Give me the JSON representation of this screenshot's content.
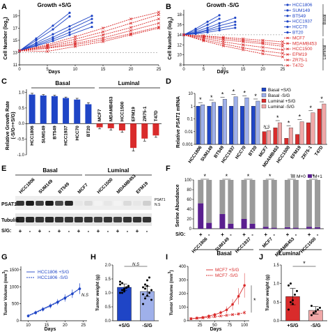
{
  "colors": {
    "basal": "#1f45c6",
    "basal_light": "#9fb0ea",
    "luminal": "#d92b2b",
    "luminal_light": "#f0a7a7",
    "gray": "#9a9a9a",
    "purple": "#5a1f8f"
  },
  "panelA": {
    "letter": "A",
    "title": "Growth +S/G",
    "xlabel": "Days",
    "ylabel": "Cell Number (log",
    "ylabel_sub": "2",
    "ylabel_end": ")",
    "chart_data": {
      "type": "line",
      "x_ticks": [
        0,
        5,
        10,
        15,
        20,
        25
      ],
      "y_ticks": [
        11,
        13,
        15,
        17,
        19
      ],
      "xlim": [
        0,
        25
      ],
      "ylim": [
        11,
        20
      ],
      "series": [
        {
          "name": "HCC1806",
          "group": "basal",
          "x": [
            0,
            3,
            6,
            9
          ],
          "y": [
            13.3,
            15.3,
            17.4,
            19.5
          ]
        },
        {
          "name": "SUM149",
          "group": "basal",
          "x": [
            0,
            3,
            6,
            9
          ],
          "y": [
            13.3,
            15.0,
            16.8,
            18.9
          ]
        },
        {
          "name": "BT549",
          "group": "basal",
          "x": [
            0,
            3,
            6,
            9,
            13
          ],
          "y": [
            13.3,
            14.6,
            16.0,
            17.3,
            19.0
          ]
        },
        {
          "name": "HCC1937",
          "group": "basal",
          "x": [
            0,
            3,
            6,
            9,
            13
          ],
          "y": [
            13.3,
            14.4,
            15.5,
            16.8,
            18.5
          ]
        },
        {
          "name": "HCC70",
          "group": "basal",
          "x": [
            0,
            3,
            6,
            9,
            13
          ],
          "y": [
            13.3,
            14.2,
            15.2,
            16.3,
            17.9
          ]
        },
        {
          "name": "BT20",
          "group": "basal",
          "x": [
            0,
            3,
            6,
            9,
            13
          ],
          "y": [
            13.3,
            14.1,
            14.9,
            15.9,
            17.2
          ]
        },
        {
          "name": "MCF7",
          "group": "luminal",
          "x": [
            0,
            5,
            10,
            15,
            20,
            25
          ],
          "y": [
            13.3,
            14.3,
            15.6,
            17.0,
            18.5,
            19.6
          ]
        },
        {
          "name": "MDAMB453",
          "group": "luminal",
          "x": [
            0,
            5,
            10,
            15,
            20,
            25
          ],
          "y": [
            13.3,
            14.1,
            15.2,
            16.4,
            17.8,
            19.2
          ]
        },
        {
          "name": "HCC1500",
          "group": "luminal",
          "x": [
            0,
            5,
            10,
            15,
            20,
            25
          ],
          "y": [
            13.3,
            14.0,
            14.8,
            15.9,
            17.1,
            18.5
          ]
        },
        {
          "name": "EFM19",
          "group": "luminal",
          "x": [
            0,
            5,
            10,
            15,
            20,
            25
          ],
          "y": [
            13.3,
            13.8,
            14.5,
            15.4,
            16.6,
            17.8
          ]
        },
        {
          "name": "ZR75-1",
          "group": "luminal",
          "x": [
            0,
            5,
            10,
            15,
            20,
            25
          ],
          "y": [
            13.3,
            13.7,
            14.3,
            15.1,
            16.1,
            17.2
          ]
        },
        {
          "name": "T47D",
          "group": "luminal",
          "x": [
            0,
            5,
            10,
            15,
            20,
            25
          ],
          "y": [
            13.3,
            13.2,
            14.0,
            14.8,
            15.9,
            17.0
          ]
        }
      ]
    }
  },
  "panelB": {
    "letter": "B",
    "title": "Growth -S/G",
    "xlabel": "Days",
    "ylabel": "Cell Number (log",
    "ylabel_sub": "2",
    "ylabel_end": ")",
    "basal_label": "Basal",
    "luminal_label": "Luminal",
    "legend": [
      "HCC1806",
      "SUM149",
      "BT549",
      "HCC1937",
      "HCC70",
      "BT20",
      "MCF7",
      "MDAMB453",
      "HCC1500",
      "EFM19",
      "ZR75-1",
      "T47D"
    ],
    "chart_data": {
      "type": "line",
      "x_ticks": [
        0,
        5,
        10,
        15,
        20,
        25
      ],
      "y_ticks": [
        8,
        10,
        12,
        14,
        16,
        18
      ],
      "xlim": [
        0,
        25
      ],
      "ylim": [
        8,
        19
      ],
      "series": [
        {
          "name": "HCC1806",
          "group": "basal",
          "x": [
            0,
            3,
            6,
            9
          ],
          "y": [
            14.0,
            15.2,
            16.6,
            17.9
          ]
        },
        {
          "name": "SUM149",
          "group": "basal",
          "x": [
            0,
            3,
            6,
            9
          ],
          "y": [
            14.0,
            14.9,
            16.0,
            17.2
          ]
        },
        {
          "name": "BT549",
          "group": "basal",
          "x": [
            0,
            3,
            6,
            9,
            13
          ],
          "y": [
            14.0,
            14.6,
            15.4,
            16.3,
            17.4
          ]
        },
        {
          "name": "HCC1937",
          "group": "basal",
          "x": [
            0,
            3,
            6,
            9,
            13
          ],
          "y": [
            14.0,
            14.4,
            15.0,
            15.8,
            16.6
          ]
        },
        {
          "name": "HCC70",
          "group": "basal",
          "x": [
            0,
            3,
            6,
            9,
            13
          ],
          "y": [
            14.0,
            14.3,
            14.8,
            15.3,
            16.0
          ]
        },
        {
          "name": "BT20",
          "group": "basal",
          "x": [
            0,
            3,
            6,
            9,
            13
          ],
          "y": [
            14.0,
            14.2,
            14.5,
            14.9,
            15.4
          ]
        },
        {
          "name": "MCF7",
          "group": "luminal",
          "x": [
            0,
            5,
            10,
            15,
            20,
            25
          ],
          "y": [
            14.0,
            13.8,
            13.5,
            13.2,
            12.9,
            12.6
          ]
        },
        {
          "name": "MDAMB453",
          "group": "luminal",
          "x": [
            0,
            5,
            10,
            15,
            20,
            25
          ],
          "y": [
            14.0,
            13.7,
            13.3,
            12.9,
            12.5,
            12.1
          ]
        },
        {
          "name": "HCC1500",
          "group": "luminal",
          "x": [
            0,
            5,
            10,
            15,
            20,
            25
          ],
          "y": [
            14.0,
            13.5,
            13.0,
            12.6,
            12.2,
            11.7
          ]
        },
        {
          "name": "EFM19",
          "group": "luminal",
          "x": [
            0,
            5,
            10,
            15,
            20,
            25
          ],
          "y": [
            14.0,
            13.3,
            12.6,
            12.0,
            11.5,
            11.0
          ]
        },
        {
          "name": "ZR75-1",
          "group": "luminal",
          "x": [
            0,
            5,
            10,
            15,
            20,
            25
          ],
          "y": [
            14.0,
            13.0,
            12.2,
            11.4,
            10.8,
            10.3
          ]
        },
        {
          "name": "T47D",
          "group": "luminal",
          "x": [
            0,
            5,
            10,
            15,
            20,
            25
          ],
          "y": [
            14.0,
            12.8,
            11.8,
            11.0,
            10.2,
            9.6
          ]
        }
      ]
    }
  },
  "panelC": {
    "letter": "C",
    "ylabel": "Relative Growth Rate",
    "ylabel2": "(-S/G÷+S/G)",
    "basal_label": "Basal",
    "luminal_label": "Luminal",
    "chart_data": {
      "type": "bar",
      "categories": [
        "HCC1806",
        "SUM149",
        "BT549",
        "HCC1937",
        "HCC70",
        "BT20",
        "MCF7",
        "MDAMB453",
        "HCC1500",
        "EFM19",
        "ZR75-1",
        "T47D"
      ],
      "values": [
        0.93,
        0.9,
        0.88,
        0.82,
        0.77,
        0.62,
        -0.12,
        -0.15,
        -0.22,
        -0.78,
        -0.48,
        -0.38
      ],
      "errors": [
        0.04,
        0.03,
        0.03,
        0.03,
        0.04,
        0.05,
        0.05,
        0.06,
        0.06,
        0.1,
        0.08,
        0.06
      ],
      "groups": [
        "basal",
        "basal",
        "basal",
        "basal",
        "basal",
        "basal",
        "luminal",
        "luminal",
        "luminal",
        "luminal",
        "luminal",
        "luminal"
      ],
      "y_ticks": [
        -1.0,
        -0.5,
        0.0,
        0.5,
        1.0
      ],
      "y_tick_labels": [
        "-1.0",
        "-0.5",
        "0.0",
        "0.5",
        "1.0"
      ],
      "ylim": [
        -1.0,
        1.1
      ]
    }
  },
  "panelD": {
    "letter": "D",
    "ylabel": "Relative ",
    "ylabel_italic": "PSAT1",
    "ylabel_end": " mRNA",
    "legend": [
      "Basal +S/G",
      "Basal -S/G",
      "Luminal +S/G",
      "Luminal -S/G"
    ],
    "ns_label": "N.S",
    "star": "*",
    "chart_data": {
      "type": "bar",
      "log_scale": true,
      "categories": [
        "HCC1806",
        "SUM149",
        "BT549",
        "HCC1937",
        "HCC70",
        "BT20",
        "MCF7",
        "MDAMB453",
        "HCC1500",
        "EFM19",
        "ZR75-1",
        "T47D"
      ],
      "series": [
        {
          "name": "+S/G",
          "values": [
            1.0,
            1.0,
            1.0,
            1.0,
            1.0,
            1.0,
            0.01,
            0.02,
            0.003,
            0.006,
            0.05,
            0.6
          ]
        },
        {
          "name": "-S/G",
          "values": [
            1.3,
            2.0,
            3.5,
            5.5,
            4.5,
            2.5,
            0.012,
            0.05,
            0.02,
            0.06,
            0.3,
            1.5
          ]
        }
      ],
      "significance": [
        "*",
        "*",
        "*",
        "*",
        "*",
        "*",
        "N.S",
        "*",
        "*",
        "*",
        "*",
        "*"
      ],
      "y_ticks": [
        0.001,
        0.01,
        0.1,
        1,
        10
      ],
      "y_tick_labels": [
        "0.001",
        "0.01",
        "0.1",
        "1",
        "10"
      ],
      "ylim": [
        0.001,
        10
      ]
    }
  },
  "panelE": {
    "letter": "E",
    "basal_label": "Basal",
    "luminal_label": "Luminal",
    "lanes": [
      "HCC1806",
      "SUM149",
      "BT549",
      "MCF7",
      "HCC1500",
      "MDAMB453",
      "EFM19"
    ],
    "psat1_label": "PSAT1",
    "psat1_ns_label": "PSAT1\nN.S",
    "tubulin_label": "Tubulin",
    "sg_label": "S/G:",
    "sg_signs": [
      "+",
      "-",
      "+",
      "-",
      "+",
      "-",
      "+",
      "-",
      "+",
      "-",
      "+",
      "-",
      "+",
      "-"
    ],
    "psat1_intensity": [
      0.85,
      0.95,
      0.8,
      0.95,
      0.75,
      0.9,
      0.1,
      0.15,
      0.05,
      0.1,
      0.05,
      0.15,
      0.1,
      0.2
    ],
    "tubulin_intensity": [
      0.9,
      0.9,
      0.85,
      0.9,
      0.85,
      0.85,
      0.85,
      0.85,
      0.8,
      0.85,
      0.8,
      0.85,
      0.85,
      0.85
    ]
  },
  "panelF": {
    "letter": "F",
    "ylabel": "Serine Abundance",
    "legend": [
      "M+0",
      "M+1"
    ],
    "sg_label": "S/G:",
    "basal_label": "Basal",
    "luminal_label": "Luminal",
    "star": "*",
    "chart_data": {
      "type": "bar",
      "stacked": true,
      "categories": [
        "HCC1806",
        "SUM149",
        "HCC1937",
        "MCF7",
        "MDAMB453",
        "HCC1500"
      ],
      "conditions": [
        "+",
        "-"
      ],
      "series": [
        {
          "name": "M+0",
          "values": [
            [
              0.48,
              0.88
            ],
            [
              0.7,
              0.9
            ],
            [
              0.8,
              0.9
            ],
            [
              0.96,
              0.98
            ],
            [
              0.97,
              0.98
            ],
            [
              0.96,
              0.97
            ]
          ]
        },
        {
          "name": "M+1",
          "values": [
            [
              0.52,
              0.12
            ],
            [
              0.3,
              0.1
            ],
            [
              0.2,
              0.1
            ],
            [
              0.04,
              0.02
            ],
            [
              0.03,
              0.02
            ],
            [
              0.04,
              0.03
            ]
          ]
        }
      ],
      "y_ticks": [
        0,
        20,
        40,
        60,
        80,
        100
      ],
      "ylim": [
        0,
        100
      ]
    }
  },
  "panelG": {
    "letter": "G",
    "xlabel": "Days",
    "ylabel": "Tumor Volume (mm",
    "ylabel_sup": "3",
    "ylabel_end": ")",
    "ns_label": "N.S",
    "chart_data": {
      "type": "line",
      "x_ticks": [
        10,
        15,
        20,
        25
      ],
      "y_ticks": [
        0,
        500,
        1000,
        1500
      ],
      "xlim": [
        8,
        26
      ],
      "ylim": [
        0,
        1600
      ],
      "series": [
        {
          "name": "HCC1806 +S/G",
          "x": [
            10,
            12,
            14,
            16,
            18,
            20,
            22,
            24
          ],
          "y": [
            150,
            250,
            350,
            450,
            560,
            680,
            800,
            950
          ],
          "err": [
            40,
            50,
            60,
            70,
            80,
            100,
            120,
            150
          ]
        },
        {
          "name": "HCC1806 -S/G",
          "x": [
            10,
            12,
            14,
            16,
            18,
            20,
            22,
            24
          ],
          "y": [
            140,
            230,
            330,
            430,
            540,
            660,
            790,
            940
          ],
          "err": [
            40,
            50,
            60,
            70,
            80,
            100,
            120,
            160
          ]
        }
      ]
    }
  },
  "panelH": {
    "letter": "H",
    "ylabel": "Tumor weight (g)",
    "ns_label": "N.S",
    "chart_data": {
      "type": "bar",
      "categories": [
        "+S/G",
        "-S/G"
      ],
      "values": [
        1.2,
        1.05
      ],
      "errors": [
        0.12,
        0.18
      ],
      "points": [
        [
          1.0,
          1.1,
          1.15,
          1.2,
          1.25,
          1.3,
          1.35,
          1.05,
          1.18,
          1.22,
          1.4,
          1.0,
          1.12
        ],
        [
          0.6,
          0.8,
          0.9,
          1.0,
          1.1,
          1.2,
          1.3,
          1.45,
          1.55,
          0.75,
          0.95,
          1.15,
          1.25
        ]
      ],
      "y_ticks": [
        0.0,
        0.5,
        1.0,
        1.5,
        2.0
      ],
      "y_tick_labels": [
        "0.0",
        "0.5",
        "1.0",
        "1.5",
        "2.0"
      ],
      "ylim": [
        0,
        2.0
      ]
    }
  },
  "panelI": {
    "letter": "I",
    "xlabel": "Days",
    "ylabel": "Tumor Volume (mm",
    "ylabel_sup": "3",
    "ylabel_end": ")",
    "star": "*",
    "chart_data": {
      "type": "line",
      "x_ticks": [
        25,
        50,
        75,
        100
      ],
      "y_ticks": [
        0,
        100,
        200,
        300,
        400
      ],
      "xlim": [
        5,
        108
      ],
      "ylim": [
        0,
        400
      ],
      "series": [
        {
          "name": "MCF7 +S/G",
          "x": [
            10,
            20,
            30,
            40,
            50,
            60,
            70,
            80,
            90,
            100
          ],
          "y": [
            15,
            20,
            25,
            35,
            45,
            60,
            80,
            120,
            180,
            260
          ],
          "err": [
            5,
            5,
            8,
            10,
            12,
            15,
            25,
            40,
            60,
            90
          ]
        },
        {
          "name": "MCF7 -S/G",
          "x": [
            10,
            20,
            30,
            40,
            50,
            60,
            70,
            80,
            90,
            100
          ],
          "y": [
            15,
            18,
            20,
            25,
            30,
            35,
            40,
            45,
            50,
            60
          ],
          "err": [
            5,
            5,
            5,
            6,
            8,
            8,
            10,
            10,
            12,
            15
          ]
        }
      ]
    }
  },
  "panelJ": {
    "letter": "J",
    "ylabel": "Tumor weight (g)",
    "star": "*",
    "chart_data": {
      "type": "bar",
      "categories": [
        "+S/G",
        "-S/G"
      ],
      "values": [
        0.65,
        0.28
      ],
      "errors": [
        0.22,
        0.1
      ],
      "points": [
        [
          0.3,
          0.5,
          0.55,
          0.7,
          0.8,
          0.95,
          1.0,
          0.45
        ],
        [
          0.15,
          0.2,
          0.25,
          0.3,
          0.35,
          0.4,
          0.22
        ]
      ],
      "y_ticks": [
        0.0,
        0.5,
        1.0,
        1.5
      ],
      "y_tick_labels": [
        "0.0",
        "0.5",
        "1.0",
        "1.5"
      ],
      "ylim": [
        0,
        1.5
      ]
    }
  }
}
